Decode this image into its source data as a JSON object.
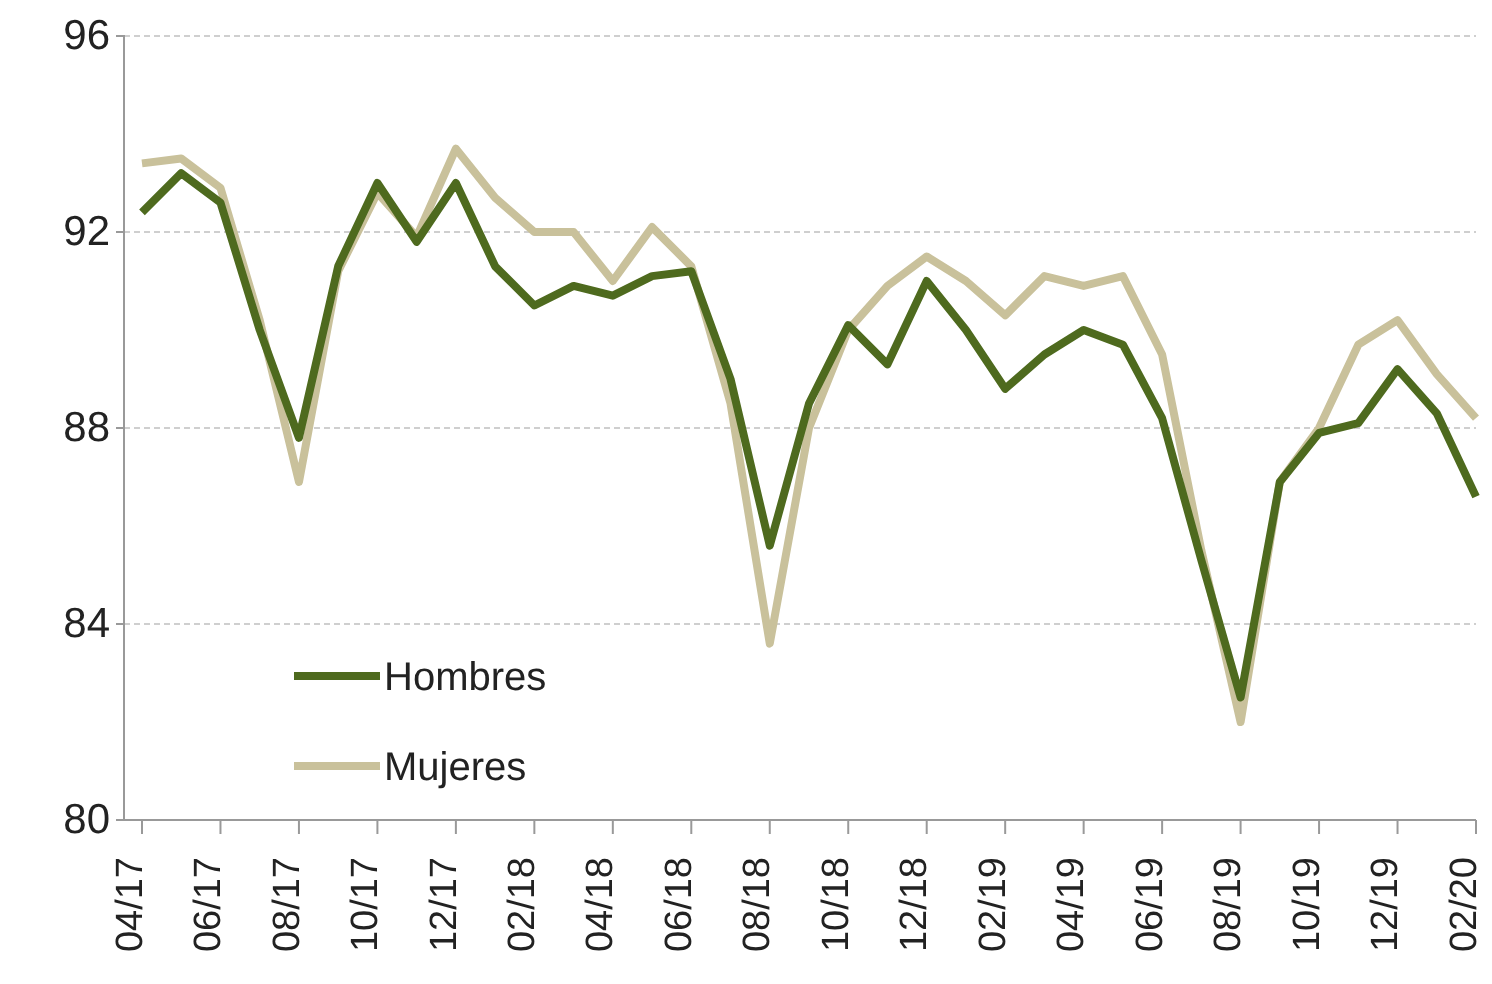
{
  "chart_data": {
    "type": "line",
    "categories": [
      "04/17",
      null,
      "06/17",
      null,
      "08/17",
      null,
      "10/17",
      null,
      "12/17",
      null,
      "02/18",
      null,
      "04/18",
      null,
      "06/18",
      null,
      "08/18",
      null,
      "10/18",
      null,
      "12/18",
      null,
      "02/19",
      null,
      "04/19",
      null,
      "06/19",
      null,
      "08/19",
      null,
      "10/19",
      null,
      "12/19",
      null,
      "02/20"
    ],
    "series": [
      {
        "name": "Hombres",
        "color": "#4e6a1e",
        "values": [
          92.4,
          93.2,
          92.6,
          90.0,
          87.8,
          91.3,
          93.0,
          91.8,
          93.0,
          91.3,
          90.5,
          90.9,
          90.7,
          91.1,
          91.2,
          89.0,
          85.6,
          88.5,
          90.1,
          89.3,
          91.0,
          90.0,
          88.8,
          89.5,
          90.0,
          89.7,
          88.2,
          85.3,
          82.5,
          86.9,
          87.9,
          88.1,
          89.2,
          88.3,
          86.6
        ]
      },
      {
        "name": "Mujeres",
        "color": "#c9c19b",
        "values": [
          93.4,
          93.5,
          92.9,
          90.2,
          86.9,
          91.2,
          92.8,
          91.9,
          93.7,
          92.7,
          92.0,
          92.0,
          91.0,
          92.1,
          91.3,
          88.5,
          83.6,
          88.0,
          90.0,
          90.9,
          91.5,
          91.0,
          90.3,
          91.1,
          90.9,
          91.1,
          89.5,
          85.5,
          82.0,
          86.9,
          88.0,
          89.7,
          90.2,
          89.1,
          88.2
        ]
      }
    ],
    "ylim": [
      80,
      96
    ],
    "yticks": [
      80,
      84,
      88,
      92,
      96
    ],
    "grid": "y",
    "legend": "bottom left",
    "line_style": "solid",
    "marker": "none"
  }
}
